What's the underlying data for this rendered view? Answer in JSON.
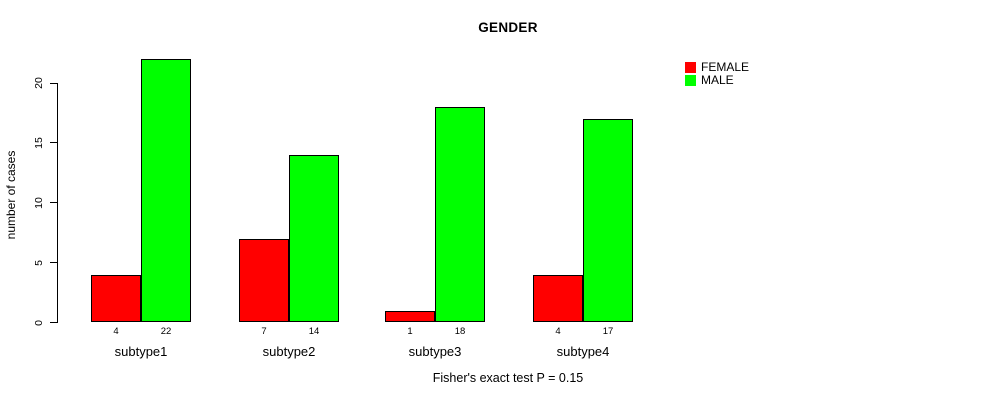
{
  "title": "GENDER",
  "ylabel": "number of cases",
  "caption": "Fisher's exact test P = 0.15",
  "chart_data": {
    "type": "bar",
    "title": "GENDER",
    "xlabel": "",
    "ylabel": "number of cases",
    "categories": [
      "subtype1",
      "subtype2",
      "subtype3",
      "subtype4"
    ],
    "series": [
      {
        "name": "FEMALE",
        "color": "#ff0000",
        "values": [
          4,
          7,
          1,
          4
        ]
      },
      {
        "name": "MALE",
        "color": "#00ff00",
        "values": [
          22,
          14,
          18,
          17
        ]
      }
    ],
    "bar_value_labels": [
      [
        "4",
        "22"
      ],
      [
        "7",
        "14"
      ],
      [
        "1",
        "18"
      ],
      [
        "4",
        "17"
      ]
    ],
    "yticks": [
      0,
      5,
      10,
      15,
      20
    ],
    "ylim": [
      0,
      22
    ],
    "grid": false,
    "legend_position": "right",
    "annotation": "Fisher's exact test P = 0.15"
  }
}
